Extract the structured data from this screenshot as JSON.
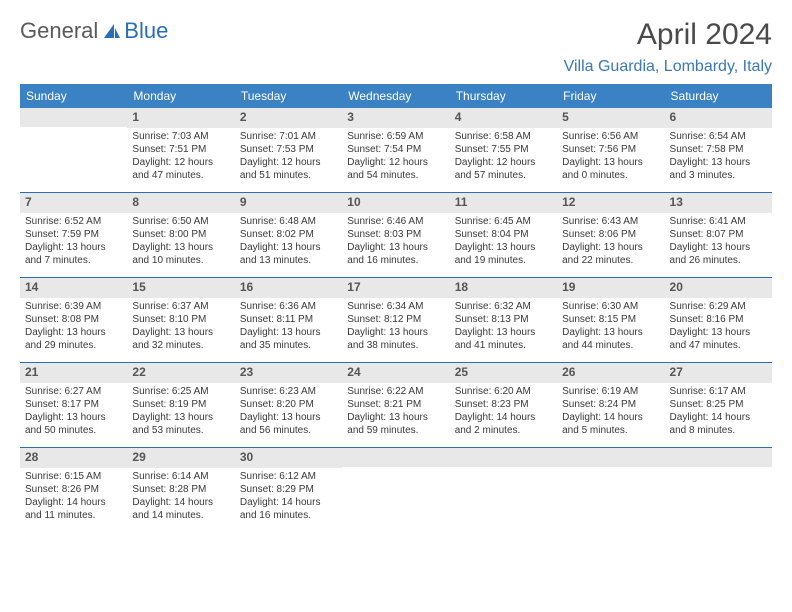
{
  "logo": {
    "text1": "General",
    "text2": "Blue"
  },
  "title": "April 2024",
  "location": "Villa Guardia, Lombardy, Italy",
  "colors": {
    "header_bg": "#3a82c4",
    "header_text": "#ffffff",
    "daynum_bg": "#e8e8e8",
    "border": "#2a6fb5",
    "accent": "#3a78b8",
    "body_text": "#3a3a3a"
  },
  "day_names": [
    "Sunday",
    "Monday",
    "Tuesday",
    "Wednesday",
    "Thursday",
    "Friday",
    "Saturday"
  ],
  "weeks": [
    [
      null,
      {
        "n": "1",
        "sr": "Sunrise: 7:03 AM",
        "ss": "Sunset: 7:51 PM",
        "d1": "Daylight: 12 hours",
        "d2": "and 47 minutes."
      },
      {
        "n": "2",
        "sr": "Sunrise: 7:01 AM",
        "ss": "Sunset: 7:53 PM",
        "d1": "Daylight: 12 hours",
        "d2": "and 51 minutes."
      },
      {
        "n": "3",
        "sr": "Sunrise: 6:59 AM",
        "ss": "Sunset: 7:54 PM",
        "d1": "Daylight: 12 hours",
        "d2": "and 54 minutes."
      },
      {
        "n": "4",
        "sr": "Sunrise: 6:58 AM",
        "ss": "Sunset: 7:55 PM",
        "d1": "Daylight: 12 hours",
        "d2": "and 57 minutes."
      },
      {
        "n": "5",
        "sr": "Sunrise: 6:56 AM",
        "ss": "Sunset: 7:56 PM",
        "d1": "Daylight: 13 hours",
        "d2": "and 0 minutes."
      },
      {
        "n": "6",
        "sr": "Sunrise: 6:54 AM",
        "ss": "Sunset: 7:58 PM",
        "d1": "Daylight: 13 hours",
        "d2": "and 3 minutes."
      }
    ],
    [
      {
        "n": "7",
        "sr": "Sunrise: 6:52 AM",
        "ss": "Sunset: 7:59 PM",
        "d1": "Daylight: 13 hours",
        "d2": "and 7 minutes."
      },
      {
        "n": "8",
        "sr": "Sunrise: 6:50 AM",
        "ss": "Sunset: 8:00 PM",
        "d1": "Daylight: 13 hours",
        "d2": "and 10 minutes."
      },
      {
        "n": "9",
        "sr": "Sunrise: 6:48 AM",
        "ss": "Sunset: 8:02 PM",
        "d1": "Daylight: 13 hours",
        "d2": "and 13 minutes."
      },
      {
        "n": "10",
        "sr": "Sunrise: 6:46 AM",
        "ss": "Sunset: 8:03 PM",
        "d1": "Daylight: 13 hours",
        "d2": "and 16 minutes."
      },
      {
        "n": "11",
        "sr": "Sunrise: 6:45 AM",
        "ss": "Sunset: 8:04 PM",
        "d1": "Daylight: 13 hours",
        "d2": "and 19 minutes."
      },
      {
        "n": "12",
        "sr": "Sunrise: 6:43 AM",
        "ss": "Sunset: 8:06 PM",
        "d1": "Daylight: 13 hours",
        "d2": "and 22 minutes."
      },
      {
        "n": "13",
        "sr": "Sunrise: 6:41 AM",
        "ss": "Sunset: 8:07 PM",
        "d1": "Daylight: 13 hours",
        "d2": "and 26 minutes."
      }
    ],
    [
      {
        "n": "14",
        "sr": "Sunrise: 6:39 AM",
        "ss": "Sunset: 8:08 PM",
        "d1": "Daylight: 13 hours",
        "d2": "and 29 minutes."
      },
      {
        "n": "15",
        "sr": "Sunrise: 6:37 AM",
        "ss": "Sunset: 8:10 PM",
        "d1": "Daylight: 13 hours",
        "d2": "and 32 minutes."
      },
      {
        "n": "16",
        "sr": "Sunrise: 6:36 AM",
        "ss": "Sunset: 8:11 PM",
        "d1": "Daylight: 13 hours",
        "d2": "and 35 minutes."
      },
      {
        "n": "17",
        "sr": "Sunrise: 6:34 AM",
        "ss": "Sunset: 8:12 PM",
        "d1": "Daylight: 13 hours",
        "d2": "and 38 minutes."
      },
      {
        "n": "18",
        "sr": "Sunrise: 6:32 AM",
        "ss": "Sunset: 8:13 PM",
        "d1": "Daylight: 13 hours",
        "d2": "and 41 minutes."
      },
      {
        "n": "19",
        "sr": "Sunrise: 6:30 AM",
        "ss": "Sunset: 8:15 PM",
        "d1": "Daylight: 13 hours",
        "d2": "and 44 minutes."
      },
      {
        "n": "20",
        "sr": "Sunrise: 6:29 AM",
        "ss": "Sunset: 8:16 PM",
        "d1": "Daylight: 13 hours",
        "d2": "and 47 minutes."
      }
    ],
    [
      {
        "n": "21",
        "sr": "Sunrise: 6:27 AM",
        "ss": "Sunset: 8:17 PM",
        "d1": "Daylight: 13 hours",
        "d2": "and 50 minutes."
      },
      {
        "n": "22",
        "sr": "Sunrise: 6:25 AM",
        "ss": "Sunset: 8:19 PM",
        "d1": "Daylight: 13 hours",
        "d2": "and 53 minutes."
      },
      {
        "n": "23",
        "sr": "Sunrise: 6:23 AM",
        "ss": "Sunset: 8:20 PM",
        "d1": "Daylight: 13 hours",
        "d2": "and 56 minutes."
      },
      {
        "n": "24",
        "sr": "Sunrise: 6:22 AM",
        "ss": "Sunset: 8:21 PM",
        "d1": "Daylight: 13 hours",
        "d2": "and 59 minutes."
      },
      {
        "n": "25",
        "sr": "Sunrise: 6:20 AM",
        "ss": "Sunset: 8:23 PM",
        "d1": "Daylight: 14 hours",
        "d2": "and 2 minutes."
      },
      {
        "n": "26",
        "sr": "Sunrise: 6:19 AM",
        "ss": "Sunset: 8:24 PM",
        "d1": "Daylight: 14 hours",
        "d2": "and 5 minutes."
      },
      {
        "n": "27",
        "sr": "Sunrise: 6:17 AM",
        "ss": "Sunset: 8:25 PM",
        "d1": "Daylight: 14 hours",
        "d2": "and 8 minutes."
      }
    ],
    [
      {
        "n": "28",
        "sr": "Sunrise: 6:15 AM",
        "ss": "Sunset: 8:26 PM",
        "d1": "Daylight: 14 hours",
        "d2": "and 11 minutes."
      },
      {
        "n": "29",
        "sr": "Sunrise: 6:14 AM",
        "ss": "Sunset: 8:28 PM",
        "d1": "Daylight: 14 hours",
        "d2": "and 14 minutes."
      },
      {
        "n": "30",
        "sr": "Sunrise: 6:12 AM",
        "ss": "Sunset: 8:29 PM",
        "d1": "Daylight: 14 hours",
        "d2": "and 16 minutes."
      },
      null,
      null,
      null,
      null
    ]
  ]
}
